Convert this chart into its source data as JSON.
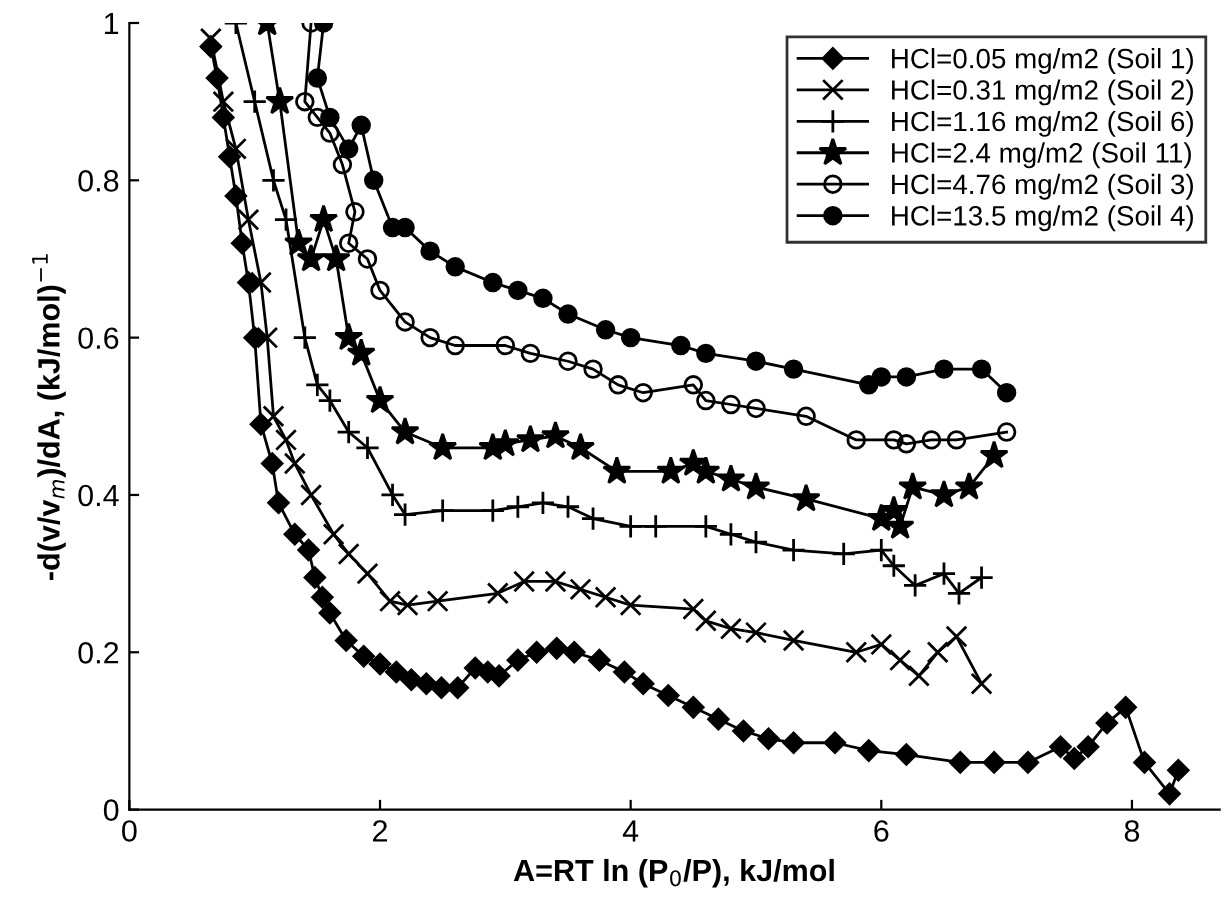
{
  "chart_data": {
    "type": "line",
    "xlabel": "A=RT ln (P$_{0}$/P), kJ/mol",
    "ylabel": "-d(v/v$_{m}$)/dA, (kJ/mol)$^{−1}$",
    "xlim": [
      0,
      8.7
    ],
    "ylim": [
      0,
      1
    ],
    "xticks": [
      0,
      2,
      4,
      6,
      8
    ],
    "yticks": [
      0,
      0.2,
      0.4,
      0.6,
      0.8,
      1
    ],
    "grid": false,
    "legend": "top right",
    "series": [
      {
        "name": "HCl=0.05 mg/m2 (Soil 1)",
        "color": "#000000",
        "marker": "diamond",
        "x": [
          0.65,
          0.7,
          0.75,
          0.8,
          0.85,
          0.9,
          0.95,
          1.0,
          1.05,
          1.14,
          1.19,
          1.32,
          1.43,
          1.48,
          1.54,
          1.6,
          1.73,
          1.87,
          2.0,
          2.13,
          2.25,
          2.37,
          2.49,
          2.62,
          2.76,
          2.86,
          2.95,
          3.1,
          3.25,
          3.41,
          3.55,
          3.75,
          3.95,
          4.1,
          4.3,
          4.5,
          4.7,
          4.9,
          5.1,
          5.3,
          5.63,
          5.9,
          6.2,
          6.63,
          6.9,
          7.17,
          7.43,
          7.54,
          7.65,
          7.8,
          7.95,
          8.1,
          8.3,
          8.37
        ],
        "values": [
          0.97,
          0.93,
          0.88,
          0.83,
          0.78,
          0.72,
          0.67,
          0.6,
          0.49,
          0.44,
          0.39,
          0.35,
          0.33,
          0.295,
          0.27,
          0.25,
          0.215,
          0.195,
          0.185,
          0.175,
          0.165,
          0.16,
          0.155,
          0.155,
          0.18,
          0.175,
          0.17,
          0.19,
          0.2,
          0.205,
          0.2,
          0.19,
          0.175,
          0.16,
          0.145,
          0.13,
          0.115,
          0.1,
          0.09,
          0.085,
          0.085,
          0.075,
          0.07,
          0.06,
          0.06,
          0.06,
          0.08,
          0.065,
          0.08,
          0.11,
          0.13,
          0.06,
          0.02,
          0.05
        ]
      },
      {
        "name": "HCl=0.31 mg/m2 (Soil 2)",
        "color": "#000000",
        "marker": "cross",
        "x": [
          0.65,
          0.75,
          0.85,
          0.95,
          1.05,
          1.1,
          1.15,
          1.25,
          1.32,
          1.45,
          1.63,
          1.75,
          1.9,
          2.08,
          2.22,
          2.46,
          2.94,
          3.15,
          3.4,
          3.6,
          3.8,
          4.0,
          4.5,
          4.6,
          4.8,
          5.0,
          5.3,
          5.8,
          6.0,
          6.15,
          6.3,
          6.45,
          6.6,
          6.8
        ],
        "values": [
          0.98,
          0.9,
          0.84,
          0.75,
          0.67,
          0.6,
          0.5,
          0.47,
          0.44,
          0.4,
          0.35,
          0.325,
          0.3,
          0.265,
          0.26,
          0.265,
          0.275,
          0.29,
          0.29,
          0.28,
          0.27,
          0.26,
          0.255,
          0.24,
          0.23,
          0.225,
          0.215,
          0.2,
          0.21,
          0.19,
          0.17,
          0.2,
          0.22,
          0.16
        ]
      },
      {
        "name": "HCl=1.16 mg/m2 (Soil 6)",
        "color": "#000000",
        "marker": "plus",
        "x": [
          0.85,
          1.0,
          1.15,
          1.25,
          1.4,
          1.5,
          1.6,
          1.75,
          1.9,
          2.1,
          2.2,
          2.5,
          2.9,
          3.1,
          3.3,
          3.5,
          3.7,
          4.0,
          4.2,
          4.6,
          4.8,
          5.0,
          5.3,
          5.7,
          6.0,
          6.1,
          6.27,
          6.5,
          6.62,
          6.8
        ],
        "values": [
          1.0,
          0.9,
          0.8,
          0.75,
          0.6,
          0.54,
          0.52,
          0.48,
          0.46,
          0.4,
          0.375,
          0.38,
          0.38,
          0.385,
          0.39,
          0.385,
          0.37,
          0.36,
          0.36,
          0.36,
          0.35,
          0.34,
          0.33,
          0.325,
          0.33,
          0.31,
          0.285,
          0.3,
          0.275,
          0.295
        ]
      },
      {
        "name": "HCl=2.4 mg/m2 (Soil 11)",
        "color": "#000000",
        "marker": "star",
        "x": [
          1.1,
          1.2,
          1.35,
          1.45,
          1.55,
          1.65,
          1.75,
          1.85,
          2.0,
          2.2,
          2.5,
          2.9,
          3.0,
          3.2,
          3.4,
          3.6,
          3.89,
          4.32,
          4.5,
          4.6,
          4.8,
          5.0,
          5.4,
          6.0,
          6.1,
          6.15,
          6.25,
          6.5,
          6.7,
          6.9
        ],
        "values": [
          1.0,
          0.9,
          0.72,
          0.7,
          0.75,
          0.7,
          0.6,
          0.58,
          0.52,
          0.48,
          0.46,
          0.46,
          0.465,
          0.47,
          0.475,
          0.46,
          0.43,
          0.43,
          0.44,
          0.43,
          0.42,
          0.41,
          0.395,
          0.37,
          0.38,
          0.36,
          0.41,
          0.4,
          0.41,
          0.45
        ]
      },
      {
        "name": "HCl=4.76 mg/m2 (Soil 3)",
        "color": "#000000",
        "marker": "circle",
        "x": [
          1.45,
          1.4,
          1.5,
          1.6,
          1.7,
          1.8,
          1.75,
          1.9,
          2.0,
          2.2,
          2.4,
          2.6,
          3.0,
          3.2,
          3.5,
          3.7,
          3.9,
          4.1,
          4.5,
          4.6,
          4.8,
          5.0,
          5.4,
          5.8,
          6.1,
          6.2,
          6.4,
          6.6,
          7.0
        ],
        "values": [
          1.0,
          0.9,
          0.88,
          0.86,
          0.82,
          0.76,
          0.72,
          0.7,
          0.66,
          0.62,
          0.6,
          0.59,
          0.59,
          0.58,
          0.57,
          0.56,
          0.54,
          0.53,
          0.54,
          0.52,
          0.515,
          0.51,
          0.5,
          0.47,
          0.47,
          0.465,
          0.47,
          0.47,
          0.48
        ]
      },
      {
        "name": "HCl=13.5 mg/m2 (Soil 4)",
        "color": "#000000",
        "marker": "circle",
        "x": [
          1.55,
          1.5,
          1.6,
          1.75,
          1.85,
          1.95,
          2.1,
          2.2,
          2.4,
          2.6,
          2.9,
          3.1,
          3.3,
          3.5,
          3.8,
          4.0,
          4.4,
          4.6,
          5.0,
          5.3,
          5.9,
          6.0,
          6.2,
          6.5,
          6.8,
          7.0
        ],
        "values": [
          1.0,
          0.93,
          0.88,
          0.84,
          0.87,
          0.8,
          0.74,
          0.74,
          0.71,
          0.69,
          0.67,
          0.66,
          0.65,
          0.63,
          0.61,
          0.6,
          0.59,
          0.58,
          0.57,
          0.56,
          0.54,
          0.55,
          0.55,
          0.56,
          0.56,
          0.53
        ]
      }
    ]
  }
}
